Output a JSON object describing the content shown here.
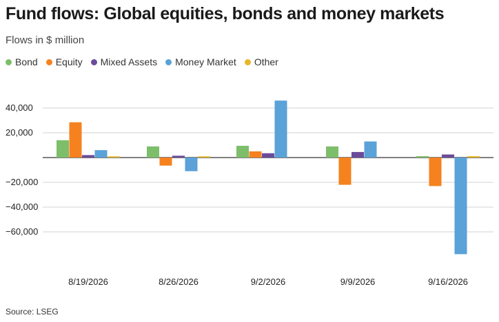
{
  "title": "Fund flows: Global equities, bonds and money markets",
  "subtitle": "Flows in $ million",
  "source": "Source: LSEG",
  "chart_data": {
    "type": "bar",
    "title": "Fund flows: Global equities, bonds and money markets",
    "subtitle": "Flows in $ million",
    "xlabel": "",
    "ylabel": "",
    "categories": [
      "8/19/2026",
      "8/26/2026",
      "9/2/2026",
      "9/9/2026",
      "9/16/2026"
    ],
    "ylim": [
      -80000,
      50000
    ],
    "yticks": [
      40000,
      20000,
      0,
      -20000,
      -40000,
      -60000
    ],
    "ytick_labels": [
      "40,000",
      "20,000",
      "0",
      "−20,000",
      "−40,000",
      "−60,000"
    ],
    "grid": true,
    "legend_position": "top-left",
    "series": [
      {
        "name": "Bond",
        "color": "#7dbe6b",
        "values": [
          14000,
          9000,
          9500,
          9000,
          500
        ]
      },
      {
        "name": "Equity",
        "color": "#f5821f",
        "values": [
          28500,
          -6500,
          5000,
          -22000,
          -23000
        ]
      },
      {
        "name": "Mixed Assets",
        "color": "#6b4c9a",
        "values": [
          2000,
          1500,
          3500,
          4500,
          2500
        ]
      },
      {
        "name": "Money Market",
        "color": "#5aa2d8",
        "values": [
          6000,
          -11000,
          46000,
          13000,
          -78000
        ]
      },
      {
        "name": "Other",
        "color": "#e6b72a",
        "values": [
          1000,
          1000,
          0,
          0,
          500
        ]
      }
    ]
  }
}
